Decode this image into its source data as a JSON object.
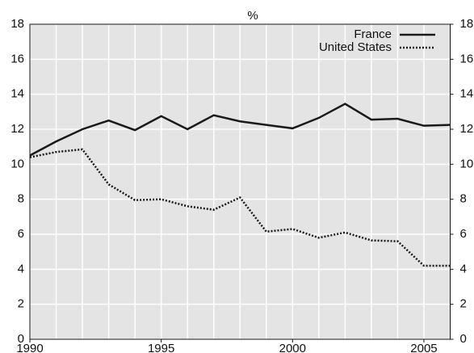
{
  "chart_data": {
    "type": "line",
    "title": "%",
    "x": [
      1990,
      1991,
      1992,
      1993,
      1994,
      1995,
      1996,
      1997,
      1998,
      1999,
      2000,
      2001,
      2002,
      2003,
      2004,
      2005,
      2006
    ],
    "xlim": [
      1990,
      2006
    ],
    "xticks": [
      1990,
      1995,
      2000,
      2005
    ],
    "ylim": [
      0,
      18
    ],
    "yticks": [
      0,
      2,
      4,
      6,
      8,
      10,
      12,
      14,
      16,
      18
    ],
    "y2lim": [
      0,
      18
    ],
    "y2ticks": [
      0,
      2,
      4,
      6,
      8,
      10,
      12,
      14,
      16,
      18
    ],
    "grid": true,
    "background": "#e4e4e4",
    "legend": "upper right",
    "series": [
      {
        "name": "France",
        "color": "#1a1a1a",
        "style": "solid",
        "values": [
          10.5,
          11.3,
          12.0,
          12.5,
          11.95,
          12.75,
          12.0,
          12.8,
          12.45,
          12.25,
          12.05,
          12.65,
          13.45,
          12.55,
          12.6,
          12.2,
          12.25
        ]
      },
      {
        "name": "United States",
        "color": "#1a1a1a",
        "style": "dotted",
        "values": [
          10.4,
          10.7,
          10.85,
          8.85,
          7.95,
          8.0,
          7.6,
          7.4,
          8.1,
          6.15,
          6.3,
          5.8,
          6.1,
          5.65,
          5.6,
          4.2,
          4.2
        ]
      }
    ]
  }
}
